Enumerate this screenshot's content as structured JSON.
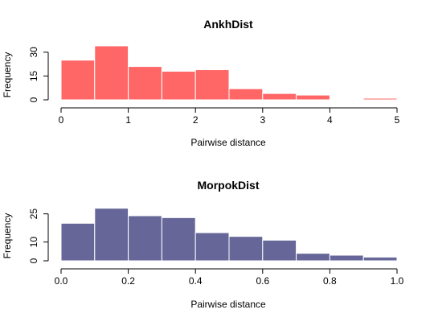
{
  "chart_data": [
    {
      "type": "histogram",
      "title": "AnkhDist",
      "xlabel": "Pairwise distance",
      "ylabel": "Frequency",
      "color": "#ff6666",
      "bin_edges": [
        0,
        0.5,
        1.0,
        1.5,
        2.0,
        2.5,
        3.0,
        3.5,
        4.0,
        4.5,
        5.0
      ],
      "values": [
        25,
        34,
        21,
        18,
        19,
        7,
        4,
        3,
        0,
        1
      ],
      "xlim": [
        0,
        5
      ],
      "ylim": [
        0,
        35
      ],
      "x_ticks": [
        0,
        1,
        2,
        3,
        4,
        5
      ],
      "x_tick_labels": [
        "0",
        "1",
        "2",
        "3",
        "4",
        "5"
      ],
      "y_ticks": [
        0,
        15,
        30
      ],
      "y_tick_labels": [
        "0",
        "15",
        "30"
      ],
      "grid": false
    },
    {
      "type": "histogram",
      "title": "MorpokDist",
      "xlabel": "Pairwise distance",
      "ylabel": "Frequency",
      "color": "#666699",
      "bin_edges": [
        0.0,
        0.1,
        0.2,
        0.3,
        0.4,
        0.5,
        0.6,
        0.7,
        0.8,
        0.9,
        1.0
      ],
      "values": [
        20,
        28,
        24,
        23,
        15,
        13,
        11,
        4,
        3,
        2
      ],
      "xlim": [
        0,
        1
      ],
      "ylim": [
        0,
        30
      ],
      "x_ticks": [
        0.0,
        0.2,
        0.4,
        0.6,
        0.8,
        1.0
      ],
      "x_tick_labels": [
        "0.0",
        "0.2",
        "0.4",
        "0.6",
        "0.8",
        "1.0"
      ],
      "y_ticks": [
        0,
        10,
        25
      ],
      "y_tick_labels": [
        "0",
        "10",
        "25"
      ],
      "grid": false
    }
  ]
}
